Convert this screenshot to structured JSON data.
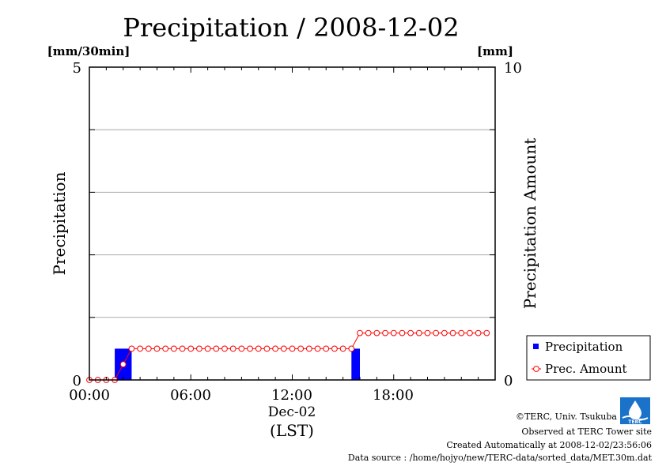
{
  "chart_data": {
    "type": "bar",
    "title": "Precipitation / 2008-12-02",
    "y_left": {
      "label": "Precipitation",
      "unit": "[mm/30min]",
      "range": [
        0,
        5
      ],
      "tick_labels": [
        "0",
        "5"
      ],
      "grid": true,
      "grid_step": 1
    },
    "y_right": {
      "label": "Precipitation Amount",
      "unit": "[mm]",
      "range": [
        0,
        10
      ],
      "tick_labels": [
        "0",
        "10"
      ]
    },
    "x_axis": {
      "range_hours": [
        0,
        24
      ],
      "tick_labels": [
        "00:00",
        "06:00",
        "12:00",
        "18:00"
      ],
      "date_label": "Dec-02",
      "unit_label": "(LST)"
    },
    "legend": {
      "placement": "bottom-right",
      "items": [
        {
          "label": "Precipitation",
          "marker": "square",
          "color": "#0000ff"
        },
        {
          "label": "Prec. Amount",
          "marker": "circle-line",
          "color": "#ff0000"
        }
      ]
    },
    "series": [
      {
        "name": "Precipitation",
        "type": "bar",
        "axis": "left",
        "color": "#0000ff",
        "bars": [
          {
            "start": "01:30",
            "end": "02:30",
            "value": 0.5
          },
          {
            "start": "15:30",
            "end": "16:00",
            "value": 0.5
          }
        ]
      },
      {
        "name": "Prec. Amount",
        "type": "line",
        "axis": "right",
        "color": "#ff0000",
        "points": [
          [
            "00:00",
            0
          ],
          [
            "00:30",
            0
          ],
          [
            "01:00",
            0
          ],
          [
            "01:30",
            0
          ],
          [
            "02:00",
            0.5
          ],
          [
            "02:30",
            1.0
          ],
          [
            "03:00",
            1.0
          ],
          [
            "03:30",
            1.0
          ],
          [
            "04:00",
            1.0
          ],
          [
            "04:30",
            1.0
          ],
          [
            "05:00",
            1.0
          ],
          [
            "05:30",
            1.0
          ],
          [
            "06:00",
            1.0
          ],
          [
            "06:30",
            1.0
          ],
          [
            "07:00",
            1.0
          ],
          [
            "07:30",
            1.0
          ],
          [
            "08:00",
            1.0
          ],
          [
            "08:30",
            1.0
          ],
          [
            "09:00",
            1.0
          ],
          [
            "09:30",
            1.0
          ],
          [
            "10:00",
            1.0
          ],
          [
            "10:30",
            1.0
          ],
          [
            "11:00",
            1.0
          ],
          [
            "11:30",
            1.0
          ],
          [
            "12:00",
            1.0
          ],
          [
            "12:30",
            1.0
          ],
          [
            "13:00",
            1.0
          ],
          [
            "13:30",
            1.0
          ],
          [
            "14:00",
            1.0
          ],
          [
            "14:30",
            1.0
          ],
          [
            "15:00",
            1.0
          ],
          [
            "15:30",
            1.0
          ],
          [
            "16:00",
            1.5
          ],
          [
            "16:30",
            1.5
          ],
          [
            "17:00",
            1.5
          ],
          [
            "17:30",
            1.5
          ],
          [
            "18:00",
            1.5
          ],
          [
            "18:30",
            1.5
          ],
          [
            "19:00",
            1.5
          ],
          [
            "19:30",
            1.5
          ],
          [
            "20:00",
            1.5
          ],
          [
            "20:30",
            1.5
          ],
          [
            "21:00",
            1.5
          ],
          [
            "21:30",
            1.5
          ],
          [
            "22:00",
            1.5
          ],
          [
            "22:30",
            1.5
          ],
          [
            "23:00",
            1.5
          ],
          [
            "23:30",
            1.5
          ]
        ]
      }
    ]
  },
  "credits": {
    "logo_text": "TERC",
    "lines": [
      "©TERC, Univ. Tsukuba",
      "Observed at TERC Tower site",
      "Created Automatically at 2008-12-02/23:56:06",
      "Data source : /home/hojyo/new/TERC-data/sorted_data/MET.30m.dat"
    ]
  }
}
